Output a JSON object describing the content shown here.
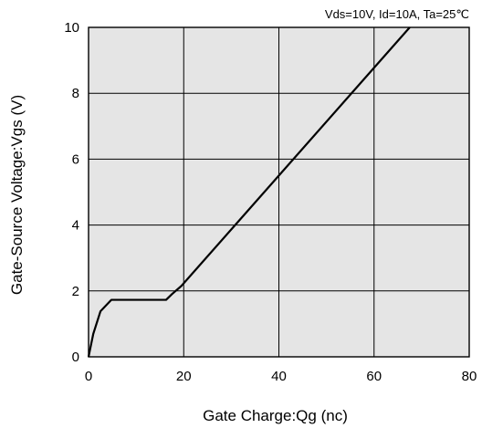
{
  "chart_data": {
    "type": "line",
    "title": "",
    "annotation": "Vds=10V, Id=10A, Ta=25℃",
    "xlabel": "Gate Charge:Qg  (nc)",
    "ylabel": "Gate-Source Voltage:Vgs  (V)",
    "xlim": [
      0,
      80
    ],
    "ylim": [
      0,
      10
    ],
    "x_ticks": [
      0,
      20,
      40,
      60,
      80
    ],
    "y_ticks": [
      0,
      2,
      4,
      6,
      8,
      10
    ],
    "grid": true,
    "plot_background": "#e5e5e5",
    "line_color": "#000000",
    "series": [
      {
        "x": [
          0,
          1.0,
          2.5,
          4.8,
          16.3,
          17.5,
          19.5,
          67.5
        ],
        "y": [
          0,
          0.7,
          1.38,
          1.73,
          1.73,
          1.9,
          2.15,
          10
        ]
      }
    ]
  }
}
